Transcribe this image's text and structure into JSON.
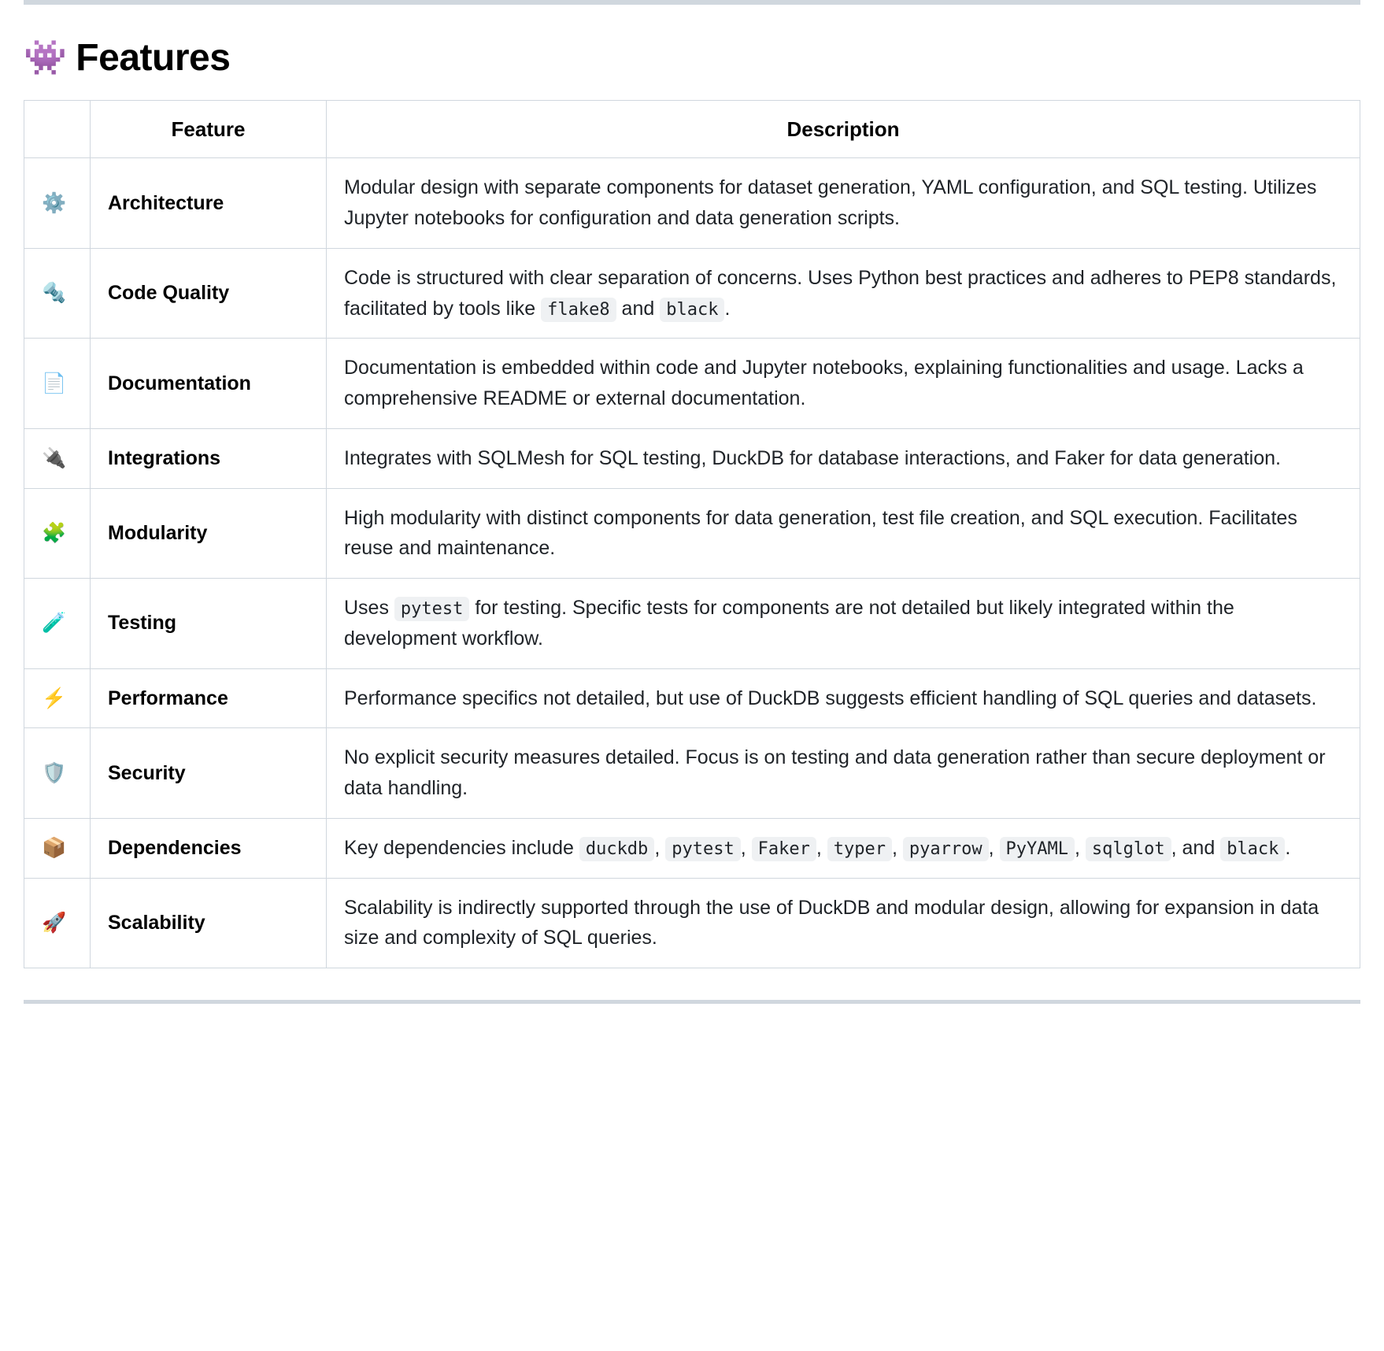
{
  "heading": {
    "emoji": "👾",
    "title": "Features"
  },
  "columns": {
    "icon": "",
    "feature": "Feature",
    "description": "Description"
  },
  "rows": [
    {
      "icon": "⚙️",
      "feature": "Architecture",
      "description_parts": [
        {
          "t": "text",
          "v": "Modular design with separate components for dataset generation, YAML configuration, and SQL testing. Utilizes Jupyter notebooks for configuration and data generation scripts."
        }
      ]
    },
    {
      "icon": "🔩",
      "feature": "Code Quality",
      "description_parts": [
        {
          "t": "text",
          "v": "Code is structured with clear separation of concerns. Uses Python best practices and adheres to PEP8 standards, facilitated by tools like "
        },
        {
          "t": "code",
          "v": "flake8"
        },
        {
          "t": "text",
          "v": " and "
        },
        {
          "t": "code",
          "v": "black"
        },
        {
          "t": "text",
          "v": "."
        }
      ]
    },
    {
      "icon": "📄",
      "feature": "Documentation",
      "description_parts": [
        {
          "t": "text",
          "v": "Documentation is embedded within code and Jupyter notebooks, explaining functionalities and usage. Lacks a comprehensive README or external documentation."
        }
      ]
    },
    {
      "icon": "🔌",
      "feature": "Integrations",
      "description_parts": [
        {
          "t": "text",
          "v": "Integrates with SQLMesh for SQL testing, DuckDB for database interactions, and Faker for data generation."
        }
      ]
    },
    {
      "icon": "🧩",
      "feature": "Modularity",
      "description_parts": [
        {
          "t": "text",
          "v": "High modularity with distinct components for data generation, test file creation, and SQL execution. Facilitates reuse and maintenance."
        }
      ]
    },
    {
      "icon": "🧪",
      "feature": "Testing",
      "description_parts": [
        {
          "t": "text",
          "v": "Uses "
        },
        {
          "t": "code",
          "v": "pytest"
        },
        {
          "t": "text",
          "v": " for testing. Specific tests for components are not detailed but likely integrated within the development workflow."
        }
      ]
    },
    {
      "icon": "⚡️",
      "feature": "Performance",
      "description_parts": [
        {
          "t": "text",
          "v": "Performance specifics not detailed, but use of DuckDB suggests efficient handling of SQL queries and datasets."
        }
      ]
    },
    {
      "icon": "🛡️",
      "feature": "Security",
      "description_parts": [
        {
          "t": "text",
          "v": "No explicit security measures detailed. Focus is on testing and data generation rather than secure deployment or data handling."
        }
      ]
    },
    {
      "icon": "📦",
      "feature": "Dependencies",
      "description_parts": [
        {
          "t": "text",
          "v": "Key dependencies include "
        },
        {
          "t": "code",
          "v": "duckdb"
        },
        {
          "t": "text",
          "v": ", "
        },
        {
          "t": "code",
          "v": "pytest"
        },
        {
          "t": "text",
          "v": ", "
        },
        {
          "t": "code",
          "v": "Faker"
        },
        {
          "t": "text",
          "v": ", "
        },
        {
          "t": "code",
          "v": "typer"
        },
        {
          "t": "text",
          "v": ", "
        },
        {
          "t": "code",
          "v": "pyarrow"
        },
        {
          "t": "text",
          "v": ", "
        },
        {
          "t": "code",
          "v": "PyYAML"
        },
        {
          "t": "text",
          "v": ", "
        },
        {
          "t": "code",
          "v": "sqlglot"
        },
        {
          "t": "text",
          "v": ", and "
        },
        {
          "t": "code",
          "v": "black"
        },
        {
          "t": "text",
          "v": "."
        }
      ]
    },
    {
      "icon": "🚀",
      "feature": "Scalability",
      "description_parts": [
        {
          "t": "text",
          "v": "Scalability is indirectly supported through the use of DuckDB and modular design, allowing for expansion in data size and complexity of SQL queries."
        }
      ]
    }
  ],
  "style": {
    "border_color": "#d0d7de",
    "code_bg": "#eff1f3",
    "text_color": "#1f2328",
    "heading_color": "#000000",
    "background": "#ffffff",
    "heading_fontsize": 48,
    "cell_fontsize": 25,
    "code_fontsize": 22
  }
}
